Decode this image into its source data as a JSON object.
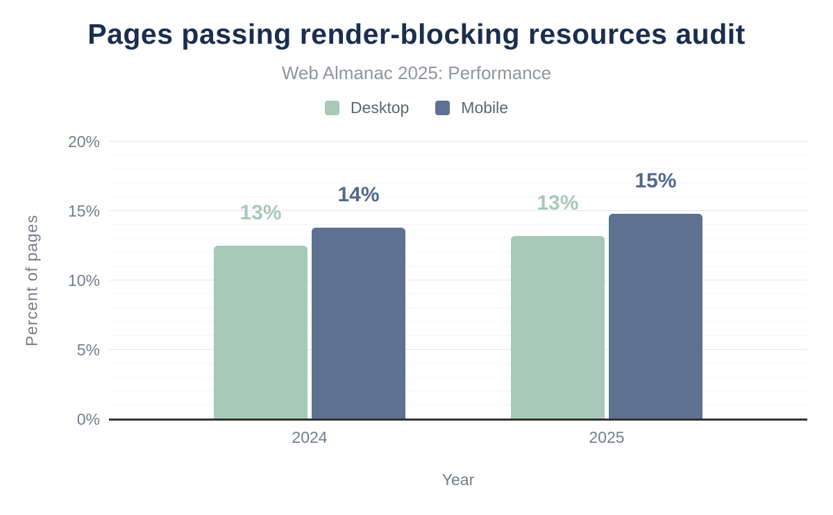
{
  "colors": {
    "background": "#ffffff",
    "title": "#1b2e4f",
    "subtitle": "#90959c",
    "legend_text": "#60666f",
    "axis_text": "#757d89",
    "axis_line": "#323232",
    "grid_major": "#e4e6e9",
    "grid_minor": "#f4f5f7",
    "desktop_bar": "#a7c9b7",
    "mobile_bar": "#5e7190"
  },
  "chart_data": {
    "type": "bar",
    "title": "Pages passing render-blocking resources audit",
    "subtitle": "Web Almanac 2025: Performance",
    "categories": [
      "2024",
      "2025"
    ],
    "series": [
      {
        "name": "Desktop",
        "values": [
          12.5,
          13.2
        ],
        "labels": [
          "13%",
          "13%"
        ],
        "color": "#a7c9b7",
        "label_color": "#a7c9b7"
      },
      {
        "name": "Mobile",
        "values": [
          13.8,
          14.8
        ],
        "labels": [
          "14%",
          "15%"
        ],
        "color": "#5e7190",
        "label_color": "#53698c"
      }
    ],
    "xlabel": "Year",
    "ylabel": "Percent of pages",
    "ylim": [
      0,
      20
    ],
    "yticks": [
      0,
      5,
      10,
      15,
      20
    ],
    "ytick_labels": [
      "0%",
      "5%",
      "10%",
      "15%",
      "20%"
    ],
    "minor_grid_step": 1,
    "grid": "horizontal",
    "legend_position": "top-center"
  }
}
